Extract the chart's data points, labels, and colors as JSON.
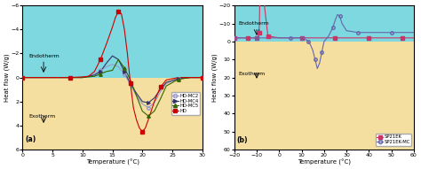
{
  "fig_width": 4.74,
  "fig_height": 1.91,
  "dpi": 100,
  "panel_a": {
    "xlim": [
      0,
      30
    ],
    "ylim": [
      -6,
      6
    ],
    "xlabel": "Temperature (°C)",
    "ylabel": "Heat flow (W/g)",
    "label": "(a)",
    "endotherm_text": "Endotherm",
    "exotherm_text": "Exotherm",
    "bg_top_color": "#7dd8e0",
    "bg_bot_color": "#f5dfa0",
    "xticks": [
      0,
      5,
      10,
      15,
      20,
      25,
      30
    ],
    "yticks": [
      -6,
      -4,
      -2,
      0,
      2,
      4,
      6
    ],
    "series": {
      "HD-MC2": {
        "color": "#9999cc",
        "marker": "o",
        "hollow": true,
        "x": [
          0,
          2,
          4,
          6,
          8,
          10,
          11,
          12,
          13,
          14,
          15,
          16,
          17,
          18,
          19,
          20,
          21,
          22,
          23,
          24,
          26,
          28,
          30
        ],
        "y": [
          0,
          0,
          0,
          0,
          0,
          0,
          -0.1,
          -0.3,
          -0.6,
          -0.9,
          -1.1,
          -0.9,
          -0.3,
          0.6,
          1.5,
          2.2,
          2.5,
          2.1,
          1.2,
          0.5,
          0.1,
          0,
          0
        ]
      },
      "HD-MC4": {
        "color": "#333366",
        "marker": ">",
        "hollow": false,
        "x": [
          0,
          2,
          4,
          6,
          8,
          10,
          11,
          12,
          13,
          14,
          15,
          16,
          17,
          18,
          19,
          20,
          21,
          22,
          23,
          24,
          26,
          28,
          30
        ],
        "y": [
          0,
          0,
          0,
          0,
          0,
          0,
          -0.1,
          -0.2,
          -0.5,
          -1.2,
          -1.8,
          -1.5,
          -0.5,
          0.5,
          1.3,
          2.0,
          2.1,
          1.7,
          1.0,
          0.4,
          0.1,
          0,
          0
        ]
      },
      "HD-MC5": {
        "color": "#336600",
        "marker": "^",
        "hollow": false,
        "x": [
          0,
          2,
          4,
          6,
          8,
          10,
          11,
          12,
          13,
          14,
          15,
          16,
          17,
          18,
          19,
          20,
          21,
          22,
          23,
          24,
          26,
          28,
          30
        ],
        "y": [
          0,
          0,
          0,
          0,
          0,
          0,
          -0.05,
          -0.1,
          -0.3,
          -0.5,
          -0.6,
          -1.5,
          -0.8,
          0.2,
          1.5,
          2.8,
          3.2,
          2.8,
          1.8,
          0.7,
          0.15,
          0,
          0
        ]
      },
      "HD": {
        "color": "#cc0000",
        "marker": "s",
        "hollow": false,
        "x": [
          0,
          2,
          4,
          6,
          8,
          10,
          11,
          12,
          13,
          14,
          15,
          15.5,
          16,
          16.5,
          17,
          17.5,
          18,
          18.5,
          19,
          19.5,
          20,
          20.5,
          21,
          22,
          23,
          24,
          26,
          28,
          30
        ],
        "y": [
          0,
          0,
          0,
          0,
          0,
          -0.05,
          -0.1,
          -0.5,
          -1.5,
          -2.8,
          -4.2,
          -5.0,
          -5.5,
          -5.3,
          -4.0,
          -2.0,
          0.5,
          2.5,
          3.5,
          4.2,
          4.5,
          4.2,
          3.5,
          2.0,
          0.8,
          0.2,
          0,
          0,
          0
        ]
      }
    }
  },
  "panel_b": {
    "xlim": [
      -20,
      60
    ],
    "ylim": [
      -20,
      60
    ],
    "xlabel": "Temperature (°C)",
    "ylabel": "Heat flow (W/g)",
    "label": "(b)",
    "endotherm_text": "Endotherm",
    "exotherm_text": "Exotherm",
    "bg_top_color": "#7dd8e0",
    "bg_bot_color": "#f5dfa0",
    "xticks": [
      -20,
      -10,
      0,
      10,
      20,
      30,
      40,
      50,
      60
    ],
    "yticks": [
      -20,
      -10,
      0,
      10,
      20,
      30,
      40,
      50,
      60
    ],
    "series": {
      "SP21EK": {
        "color": "#cc3366",
        "marker": "s",
        "hollow": false,
        "x": [
          -20,
          -18,
          -16,
          -14,
          -12,
          -11,
          -10,
          -9.5,
          -9.2,
          -9.0,
          -8.8,
          -8.5,
          -8.2,
          -8.0,
          -7.5,
          -5,
          0,
          5,
          10,
          15,
          20,
          25,
          30,
          35,
          40,
          45,
          50,
          55,
          60
        ],
        "y": [
          -2,
          -2,
          -2,
          -2,
          -2,
          -2,
          -2,
          -2.5,
          -3,
          -5,
          -10,
          -30,
          -52,
          -55,
          -30,
          -3,
          -2,
          -2,
          -2,
          -2,
          -2,
          -2,
          -2,
          -2,
          -2,
          -2,
          -2,
          -2,
          -2
        ]
      },
      "SP21EK-MC": {
        "color": "#6666aa",
        "marker": "o",
        "hollow": true,
        "x": [
          -20,
          -15,
          -12,
          -10,
          -5,
          0,
          5,
          8,
          9,
          10,
          11,
          12,
          13,
          14,
          15,
          16,
          17,
          18,
          19,
          20,
          22,
          24,
          25,
          26,
          27,
          28,
          30,
          35,
          40,
          45,
          50,
          55,
          60
        ],
        "y": [
          -2,
          -2,
          -2,
          -2,
          -2,
          -2,
          -2,
          -2,
          -2,
          -2,
          -2,
          -1,
          0,
          2,
          5,
          10,
          15,
          12,
          6,
          0,
          -3,
          -8,
          -12,
          -15,
          -14,
          -10,
          -6,
          -5,
          -5,
          -5,
          -5,
          -5,
          -5
        ]
      }
    }
  }
}
